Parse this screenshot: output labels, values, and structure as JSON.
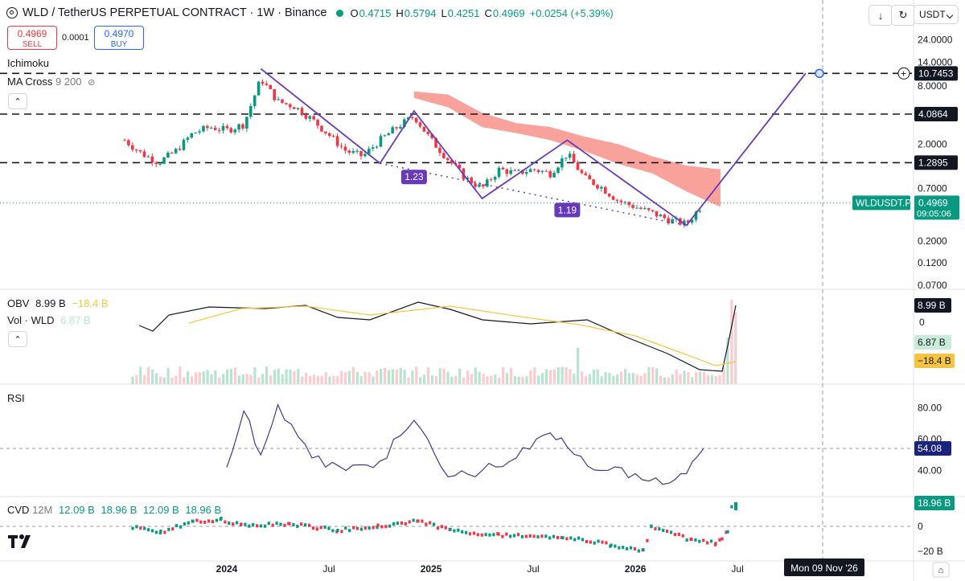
{
  "header": {
    "symbol": "WLD / TetherUS PERPETUAL CONTRACT · 1W · Binance",
    "o_label": "O",
    "o_val": "0.4715",
    "h_label": "H",
    "h_val": "0.5794",
    "l_label": "L",
    "l_val": "0.4251",
    "c_label": "C",
    "c_val": "0.4969",
    "change": "+0.0254 (+5.39%)"
  },
  "trade": {
    "sell_price": "0.4969",
    "sell_label": "SELL",
    "spread": "0.0001",
    "buy_price": "0.4970",
    "buy_label": "BUY"
  },
  "toolbar": {
    "currency": "USDT"
  },
  "indicators": {
    "ichimoku": "Ichimoku",
    "ma_cross": "MA Cross",
    "ma_params": "9 200",
    "obv": "OBV",
    "obv_val": "8.99 B",
    "obv_ma": "−18.4 B",
    "vol": "Vol · WLD",
    "vol_val": "6.87 B",
    "rsi": "RSI",
    "cvd": "CVD",
    "cvd_tf": "12M",
    "cvd_v1": "12.09 B",
    "cvd_v2": "18.96 B",
    "cvd_v3": "12.09 B",
    "cvd_v4": "18.96 B"
  },
  "colors": {
    "up": "#089981",
    "down": "#f23645",
    "pattern": "#673ab7",
    "cloud": "#f7827a",
    "obv_ma": "#f5c542"
  },
  "chart_data": [
    {
      "type": "candlestick",
      "title": "WLD / TetherUS PERPETUAL CONTRACT · 1W · Binance",
      "x_ticks": [
        "2024",
        "Jul",
        "2025",
        "Jul",
        "2026",
        "Jul"
      ],
      "y_scale": "log",
      "y_ticks": [
        "24.0000",
        "14.0000",
        "8.0000",
        "4.0864",
        "2.0000",
        "1.2895",
        "0.7000",
        "0.4969",
        "0.2000",
        "0.1200",
        "0.0700"
      ],
      "price_labels": {
        "target": "10.7453",
        "level1": "4.0864",
        "level2": "1.2895",
        "last": "0.4969",
        "symbol_tag": "WLDUSDT.P",
        "countdown": "09:05:06"
      },
      "horizontal_levels": [
        10.7453,
        4.0864,
        1.2895
      ],
      "pattern_labels": [
        "1.23",
        "1.19"
      ],
      "crosshair_date": "Mon 09 Nov '26",
      "series": [
        {
          "name": "WLD close (approx.)",
          "x": [
            "2023-07",
            "2023-08",
            "2023-09",
            "2023-10",
            "2023-11",
            "2023-12",
            "2024-01",
            "2024-02",
            "2024-03",
            "2024-04",
            "2024-05",
            "2024-06",
            "2024-07",
            "2024-08",
            "2024-09",
            "2024-10",
            "2024-11",
            "2024-12",
            "2025-01",
            "2025-02",
            "2025-03",
            "2025-04",
            "2025-05",
            "2025-06",
            "2025-07",
            "2025-08",
            "2025-09",
            "2025-10",
            "2025-11",
            "2025-12",
            "2026-01",
            "2026-02",
            "2026-03",
            "2026-04",
            "2026-05"
          ],
          "values": [
            2.2,
            1.6,
            1.3,
            1.7,
            2.6,
            3.0,
            2.8,
            3.2,
            9.5,
            5.5,
            4.9,
            3.6,
            2.5,
            1.7,
            1.5,
            2.2,
            3.0,
            3.9,
            2.2,
            1.4,
            0.9,
            0.7,
            1.1,
            1.0,
            1.1,
            1.0,
            1.6,
            0.9,
            0.72,
            0.52,
            0.45,
            0.39,
            0.33,
            0.3,
            0.49
          ]
        }
      ]
    },
    {
      "type": "line",
      "title": "OBV",
      "last": "8.99 B",
      "ma_last": "−18.4 B",
      "y_ticks": [
        "0"
      ]
    },
    {
      "type": "bar",
      "title": "Vol · WLD",
      "last": "6.87 B"
    },
    {
      "type": "line",
      "title": "RSI",
      "y_ticks": [
        "80.00",
        "60.00",
        "40.00"
      ],
      "last": "54.08",
      "series": [
        {
          "name": "RSI",
          "x": [
            "2024-01",
            "2024-02",
            "2024-03",
            "2024-04",
            "2024-06",
            "2024-08",
            "2024-10",
            "2024-12",
            "2025-02",
            "2025-04",
            "2025-06",
            "2025-08",
            "2025-09",
            "2025-11",
            "2026-01",
            "2026-03",
            "2026-04",
            "2026-05"
          ],
          "values": [
            42,
            78,
            50,
            82,
            48,
            40,
            46,
            72,
            36,
            40,
            48,
            64,
            55,
            40,
            38,
            32,
            38,
            54
          ]
        }
      ]
    },
    {
      "type": "bar",
      "title": "CVD",
      "y_ticks": [
        "0",
        "−20 B"
      ],
      "last": "18.96 B"
    }
  ]
}
